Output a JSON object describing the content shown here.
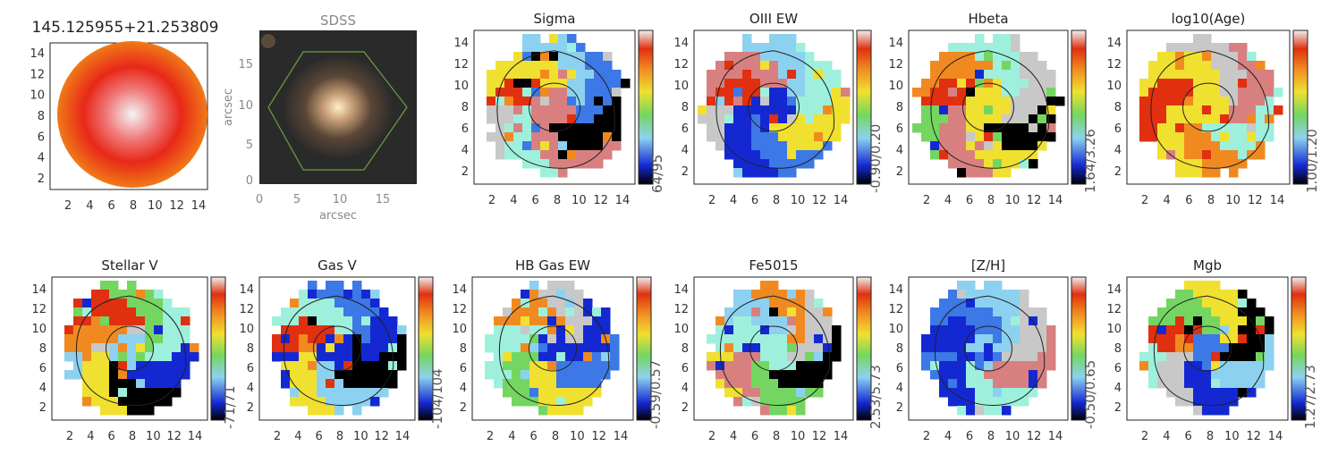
{
  "object_id": "145.125955+21.253809",
  "sdss": {
    "title": "SDSS",
    "xlabel": "arcsec",
    "ylabel": "arcsec",
    "xticks": [
      "0",
      "5",
      "10",
      "15"
    ],
    "yticks": [
      "0",
      "5",
      "10",
      "15"
    ]
  },
  "map_ticks": {
    "x": [
      "2",
      "4",
      "6",
      "8",
      "10",
      "12",
      "14"
    ],
    "y": [
      "2",
      "4",
      "6",
      "8",
      "10",
      "12",
      "14"
    ]
  },
  "panels": [
    {
      "key": "sigma",
      "title": "Sigma",
      "range": "64/95"
    },
    {
      "key": "oiii_ew",
      "title": "OIII EW",
      "range": "-0.90/0.20"
    },
    {
      "key": "hbeta",
      "title": "Hbeta",
      "range": "1.64/3.26"
    },
    {
      "key": "log_age",
      "title": "log10(Age)",
      "range": "1.00/1.20"
    },
    {
      "key": "stellar_v",
      "title": "Stellar V",
      "range": "-71/71"
    },
    {
      "key": "gas_v",
      "title": "Gas V",
      "range": "-104/104"
    },
    {
      "key": "hb_gas_ew",
      "title": "HB Gas EW",
      "range": "-0.59/0.57"
    },
    {
      "key": "fe5015",
      "title": "Fe5015",
      "range": "2.53/5.73"
    },
    {
      "key": "z_h",
      "title": "[Z/H]",
      "range": "-0.50/0.65"
    },
    {
      "key": "mgb",
      "title": "Mgb",
      "range": "1.27/2.73"
    }
  ],
  "colors": {
    "black": "#000000",
    "blue": "#1428d2",
    "mid_blue": "#3c78e6",
    "light_blue": "#8cd2f0",
    "cyan": "#9ef0dc",
    "green": "#74d660",
    "yellow": "#f0e030",
    "orange": "#f08a20",
    "red": "#e03010",
    "pink": "#d88080",
    "grey": "#c8c8c8",
    "sky_green": "#6ca040"
  }
}
